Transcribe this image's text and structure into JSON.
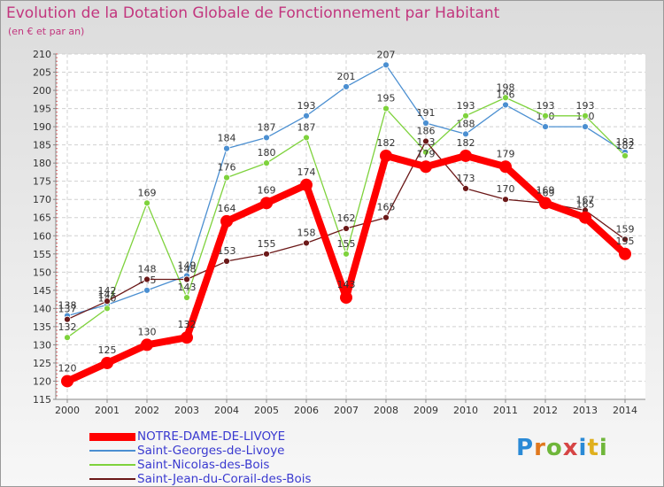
{
  "chart_data": {
    "type": "line",
    "title": "Evolution de la Dotation Globale de Fonctionnement par Habitant",
    "subtitle": "(en € et par an)",
    "xlabel": "",
    "ylabel": "",
    "ylim": [
      115,
      210
    ],
    "ytick_step": 5,
    "categories": [
      "2000",
      "2001",
      "2002",
      "2003",
      "2004",
      "2005",
      "2006",
      "2007",
      "2008",
      "2009",
      "2010",
      "2011",
      "2012",
      "2013",
      "2014"
    ],
    "series": [
      {
        "name": "Saint-Georges-de-Livoye",
        "color": "#4b8fd1",
        "values": [
          138,
          141,
          145,
          149,
          184,
          187,
          193,
          201,
          207,
          191,
          188,
          196,
          190,
          190,
          183
        ]
      },
      {
        "name": "Saint-Nicolas-des-Bois",
        "color": "#7ed23c",
        "values": [
          132,
          140,
          169,
          143,
          176,
          180,
          187,
          155,
          195,
          183,
          193,
          198,
          193,
          193,
          182
        ]
      },
      {
        "name": "Saint-Jean-du-Corail-des-Bois",
        "color": "#6b1818",
        "values": [
          137,
          142,
          148,
          148,
          153,
          155,
          158,
          162,
          165,
          186,
          173,
          170,
          169,
          167,
          159
        ]
      },
      {
        "name": "NOTRE-DAME-DE-LIVOYE",
        "color": "#ff0000",
        "values": [
          120,
          125,
          130,
          132,
          164,
          169,
          174,
          143,
          182,
          179,
          182,
          179,
          169,
          165,
          155
        ]
      }
    ],
    "legend_order": [
      "NOTRE-DAME-DE-LIVOYE",
      "Saint-Georges-de-Livoye",
      "Saint-Nicolas-des-Bois",
      "Saint-Jean-du-Corail-des-Bois"
    ],
    "grid": true,
    "legend_position": "bottom-left"
  },
  "logo": {
    "letters": [
      "P",
      "r",
      "o",
      "x",
      "i",
      "t",
      "i"
    ]
  }
}
